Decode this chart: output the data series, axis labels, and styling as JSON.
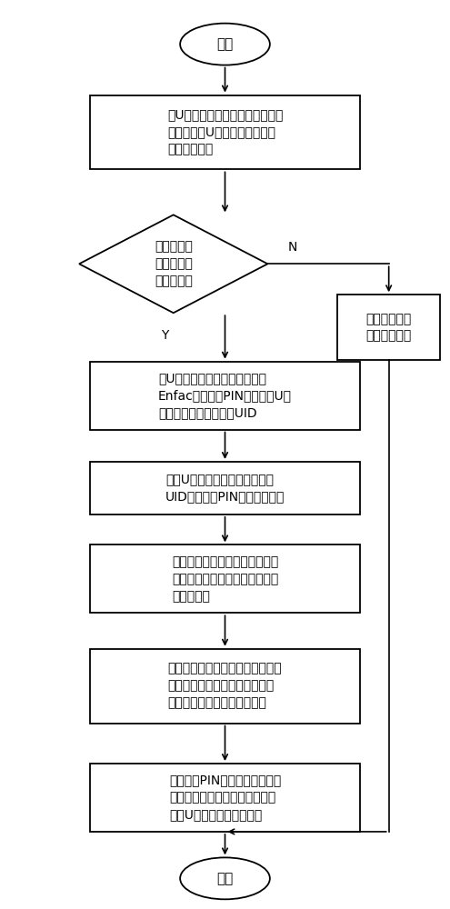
{
  "background_color": "#ffffff",
  "start_text": "开始",
  "end_text": "结束",
  "box1_text": "向U盾安全模块中加载解密算法、\n解密密钥、U盾安全模块的主密\n钥和认证密钥",
  "diamond_text": "所有的算法\n和密钥是否\n均加载成功",
  "box2_text": "向U盾安全模块中输入加密因子\nEnfac和授权码PIN，并获取U盾\n安全模块的唯一标识符UID",
  "box3_text": "利用U盾安全模块的唯一标识符\nUID与授权码PIN生成掩码密钥",
  "box4_text": "利用加密因子和主密钥生成临时\n密钥，并利用临时密钥对解密密\n钥进行加密",
  "box5_text": "用掩码密钥对加密因子进行加密，\n得到加密后的加密因子，使加密\n因子从暴露状态变成加密状态",
  "box6_text": "将授权码PIN、认证密钥以及被\n加密的加密因子载入高拍仪中，\n完成U盾安全模块的初始化",
  "err_text": "则给出加载错\n误的报告提醒",
  "label_y": "Y",
  "label_n": "N",
  "font_size_title": 11,
  "font_size_body": 10
}
